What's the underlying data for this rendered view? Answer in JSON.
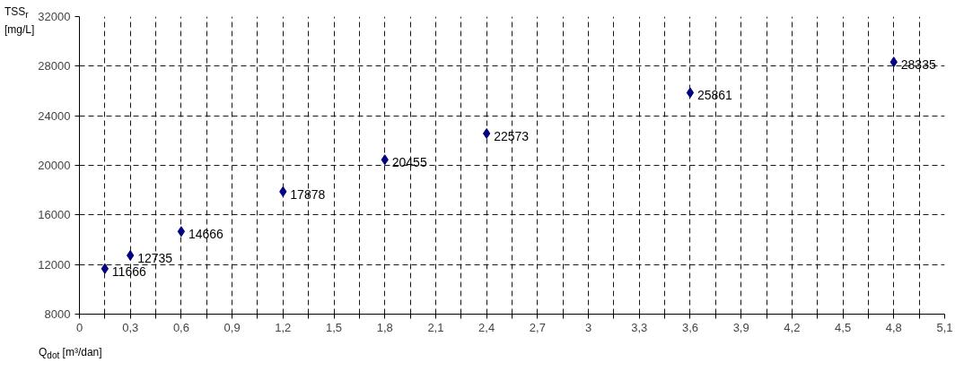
{
  "chart_data": {
    "type": "scatter",
    "xlabel": "Q$_{dot}$ [m³/dan]",
    "ylabel": "TSS$_{r}$ [mg/L]",
    "x": [
      0.15,
      0.3,
      0.6,
      1.2,
      1.8,
      2.4,
      3.6,
      4.8
    ],
    "series": [
      {
        "color": "#000080",
        "values": [
          11666,
          12735,
          14666,
          17878,
          20455,
          22573,
          25861,
          28335
        ]
      }
    ],
    "data_labels": true,
    "marker": "diamond",
    "grid": true,
    "xlim": [
      0,
      5.1
    ],
    "ylim": [
      8000,
      32000
    ],
    "xticks": [
      {
        "value": 0,
        "label": "0"
      },
      {
        "value": 0.15,
        "label": null
      },
      {
        "value": 0.3,
        "label": "0,3"
      },
      {
        "value": 0.45,
        "label": null
      },
      {
        "value": 0.6,
        "label": "0,6"
      },
      {
        "value": 0.75,
        "label": null
      },
      {
        "value": 0.9,
        "label": "0,9"
      },
      {
        "value": 1.05,
        "label": null
      },
      {
        "value": 1.2,
        "label": "1,2"
      },
      {
        "value": 1.35,
        "label": null
      },
      {
        "value": 1.5,
        "label": "1,5"
      },
      {
        "value": 1.65,
        "label": null
      },
      {
        "value": 1.8,
        "label": "1,8"
      },
      {
        "value": 1.95,
        "label": null
      },
      {
        "value": 2.1,
        "label": "2,1"
      },
      {
        "value": 2.25,
        "label": null
      },
      {
        "value": 2.4,
        "label": "2,4"
      },
      {
        "value": 2.55,
        "label": null
      },
      {
        "value": 2.7,
        "label": "2,7"
      },
      {
        "value": 2.85,
        "label": null
      },
      {
        "value": 3,
        "label": "3"
      },
      {
        "value": 3.15,
        "label": null
      },
      {
        "value": 3.3,
        "label": "3,3"
      },
      {
        "value": 3.45,
        "label": null
      },
      {
        "value": 3.6,
        "label": "3,6"
      },
      {
        "value": 3.75,
        "label": null
      },
      {
        "value": 3.9,
        "label": "3,9"
      },
      {
        "value": 4.05,
        "label": null
      },
      {
        "value": 4.2,
        "label": "4,2"
      },
      {
        "value": 4.35,
        "label": null
      },
      {
        "value": 4.5,
        "label": "4,5"
      },
      {
        "value": 4.65,
        "label": null
      },
      {
        "value": 4.8,
        "label": "4,8"
      },
      {
        "value": 4.95,
        "label": null
      },
      {
        "value": 5.1,
        "label": "5,1"
      }
    ],
    "yticks": [
      8000,
      12000,
      16000,
      20000,
      24000,
      28000,
      32000
    ]
  }
}
